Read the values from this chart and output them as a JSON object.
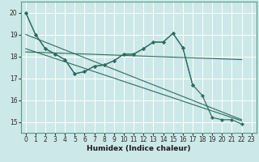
{
  "xlabel": "Humidex (Indice chaleur)",
  "bg_color": "#cce8e8",
  "grid_color": "#ffffff",
  "line_color": "#2e6b60",
  "xlim": [
    -0.5,
    23.5
  ],
  "ylim": [
    14.5,
    20.5
  ],
  "xticks": [
    0,
    1,
    2,
    3,
    4,
    5,
    6,
    7,
    8,
    9,
    10,
    11,
    12,
    13,
    14,
    15,
    16,
    17,
    18,
    19,
    20,
    21,
    22,
    23
  ],
  "yticks": [
    15,
    16,
    17,
    18,
    19,
    20
  ],
  "series1_x": [
    0,
    1,
    2,
    3,
    4,
    5,
    6,
    7,
    8,
    9,
    10,
    11,
    12,
    13,
    14,
    15,
    16,
    17
  ],
  "series1_y": [
    20.0,
    19.0,
    18.35,
    18.1,
    17.85,
    17.2,
    17.3,
    17.55,
    17.6,
    17.8,
    18.1,
    18.1,
    18.35,
    18.65,
    18.65,
    19.05,
    18.4,
    16.7
  ],
  "series2_x": [
    0,
    1,
    2,
    3,
    4,
    5,
    6,
    7,
    8,
    9,
    10,
    11,
    12,
    13,
    14,
    15,
    16,
    17,
    18,
    19,
    20,
    21,
    22
  ],
  "series2_y": [
    20.0,
    19.0,
    18.35,
    18.1,
    17.85,
    17.2,
    17.3,
    17.55,
    17.6,
    17.8,
    18.1,
    18.1,
    18.35,
    18.65,
    18.65,
    19.05,
    18.4,
    16.7,
    16.2,
    15.2,
    15.1,
    15.1,
    14.9
  ],
  "trend1_x": [
    0,
    22
  ],
  "trend1_y": [
    19.0,
    15.1
  ],
  "trend2_x": [
    0,
    22
  ],
  "trend2_y": [
    18.35,
    15.05
  ],
  "trend3_x": [
    0,
    22
  ],
  "trend3_y": [
    18.2,
    17.85
  ]
}
